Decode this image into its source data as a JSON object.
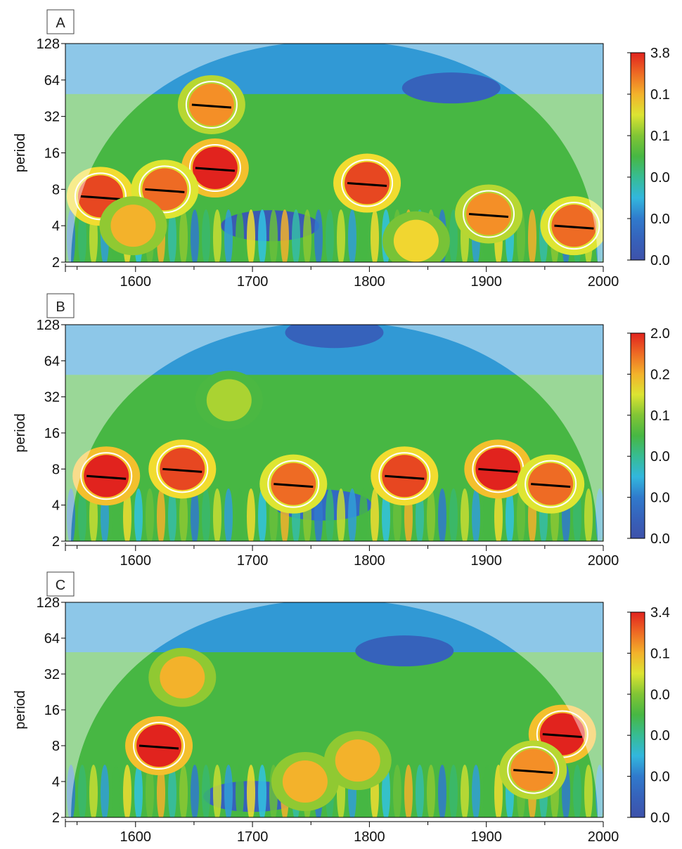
{
  "chart_data": [
    {
      "type": "heatmap",
      "panel_label": "A",
      "ylabel": "period",
      "x_ticks": [
        "1600",
        "1700",
        "1800",
        "1900",
        "2000"
      ],
      "y_ticks": [
        "128",
        "64",
        "32",
        "16",
        "8",
        "4",
        "2"
      ],
      "xlim": [
        1540,
        2000
      ],
      "ylim": [
        2,
        128
      ],
      "y_scale": "log2",
      "colorbar_labels": [
        "3.8",
        "0.1",
        "0.1",
        "0.0",
        "0.0",
        "0.0"
      ],
      "hotspots": [
        {
          "x": 1665,
          "period": 40,
          "power": 0.85
        },
        {
          "x": 1668,
          "period": 12,
          "power": 1.0
        },
        {
          "x": 1570,
          "period": 7,
          "power": 0.95
        },
        {
          "x": 1625,
          "period": 8,
          "power": 0.9
        },
        {
          "x": 1598,
          "period": 4,
          "power": 0.8
        },
        {
          "x": 1798,
          "period": 9,
          "power": 0.95
        },
        {
          "x": 1902,
          "period": 5,
          "power": 0.85
        },
        {
          "x": 1975,
          "period": 4,
          "power": 0.9
        },
        {
          "x": 1840,
          "period": 3,
          "power": 0.75
        }
      ],
      "troughs": [
        {
          "x": 1715,
          "period": 4,
          "power": 0.05
        },
        {
          "x": 1870,
          "period": 55,
          "power": 0.1
        }
      ]
    },
    {
      "type": "heatmap",
      "panel_label": "B",
      "ylabel": "period",
      "x_ticks": [
        "1600",
        "1700",
        "1800",
        "1900",
        "2000"
      ],
      "y_ticks": [
        "128",
        "64",
        "32",
        "16",
        "8",
        "4",
        "2"
      ],
      "xlim": [
        1540,
        2000
      ],
      "ylim": [
        2,
        128
      ],
      "y_scale": "log2",
      "colorbar_labels": [
        "2.0",
        "0.2",
        "0.1",
        "0.0",
        "0.0",
        "0.0"
      ],
      "hotspots": [
        {
          "x": 1575,
          "period": 7,
          "power": 1.0
        },
        {
          "x": 1640,
          "period": 8,
          "power": 0.95
        },
        {
          "x": 1735,
          "period": 6,
          "power": 0.9
        },
        {
          "x": 1830,
          "period": 7,
          "power": 0.95
        },
        {
          "x": 1910,
          "period": 8,
          "power": 1.0
        },
        {
          "x": 1955,
          "period": 6,
          "power": 0.9
        },
        {
          "x": 1680,
          "period": 30,
          "power": 0.65
        }
      ],
      "troughs": [
        {
          "x": 1760,
          "period": 4,
          "power": 0.15
        },
        {
          "x": 1770,
          "period": 110,
          "power": 0.1
        }
      ]
    },
    {
      "type": "heatmap",
      "panel_label": "C",
      "ylabel": "period",
      "x_ticks": [
        "1600",
        "1700",
        "1800",
        "1900",
        "2000"
      ],
      "y_ticks": [
        "128",
        "64",
        "32",
        "16",
        "8",
        "4",
        "2"
      ],
      "xlim": [
        1540,
        2000
      ],
      "ylim": [
        2,
        128
      ],
      "y_scale": "log2",
      "colorbar_labels": [
        "3.4",
        "0.1",
        "0.0",
        "0.0",
        "0.0",
        "0.0"
      ],
      "hotspots": [
        {
          "x": 1620,
          "period": 8,
          "power": 1.0
        },
        {
          "x": 1640,
          "period": 30,
          "power": 0.8
        },
        {
          "x": 1965,
          "period": 10,
          "power": 1.0
        },
        {
          "x": 1940,
          "period": 5,
          "power": 0.85
        },
        {
          "x": 1745,
          "period": 4,
          "power": 0.8
        },
        {
          "x": 1790,
          "period": 6,
          "power": 0.8
        }
      ],
      "troughs": [
        {
          "x": 1700,
          "period": 3,
          "power": 0.1
        },
        {
          "x": 1830,
          "period": 50,
          "power": 0.1
        }
      ]
    }
  ]
}
